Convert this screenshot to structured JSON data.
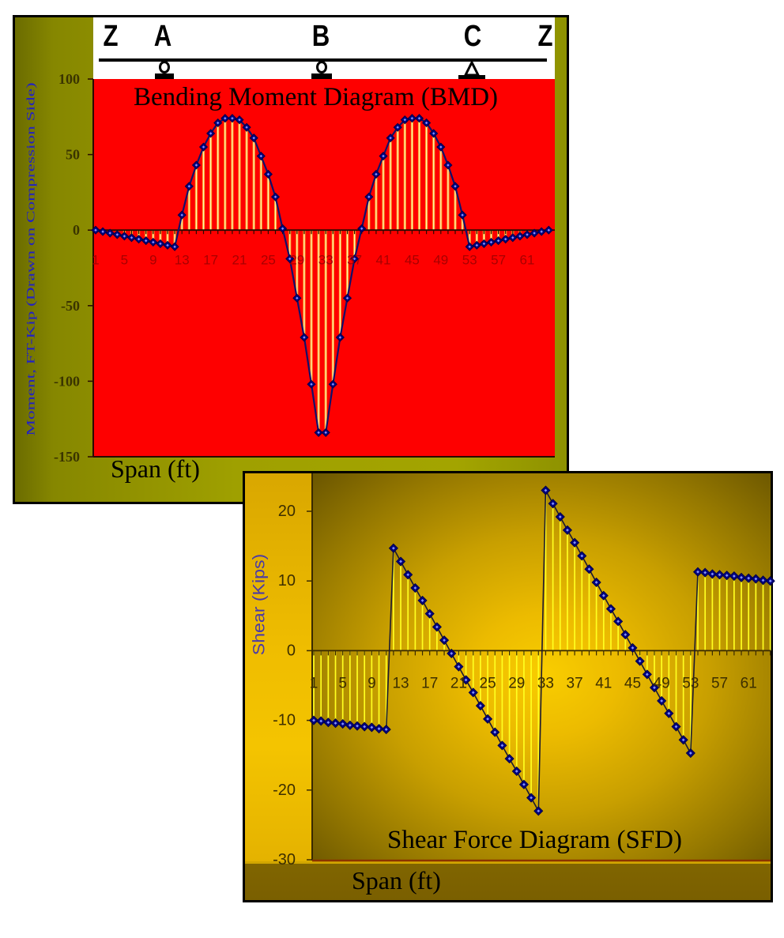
{
  "beam": {
    "labels": [
      "Z",
      "A",
      "B",
      "C",
      "Z"
    ],
    "supports": [
      {
        "at": "A",
        "type": "roller"
      },
      {
        "at": "B",
        "type": "roller"
      },
      {
        "at": "C",
        "type": "pin"
      }
    ]
  },
  "chart_data": [
    {
      "id": "bmd",
      "type": "line",
      "style": "stem-with-markers",
      "title": "Bending Moment Diagram (BMD)",
      "xlabel": "Span (ft)",
      "ylabel": "Moment, FT-Kip (Drawn on Compression Side)",
      "ylim": [
        -150,
        100
      ],
      "yticks": [
        100,
        50,
        0,
        -50,
        -100,
        -150
      ],
      "xtick_labels": [
        "1",
        "5",
        "9",
        "13",
        "17",
        "21",
        "25",
        "29",
        "33",
        "37",
        "41",
        "45",
        "49",
        "53",
        "57",
        "61"
      ],
      "x": [
        1,
        2,
        3,
        4,
        5,
        6,
        7,
        8,
        9,
        10,
        11,
        12,
        13,
        14,
        15,
        16,
        17,
        18,
        19,
        20,
        21,
        22,
        23,
        24,
        25,
        26,
        27,
        28,
        29,
        30,
        31,
        32,
        33,
        34,
        35,
        36,
        37,
        38,
        39,
        40,
        41,
        42,
        43,
        44,
        45,
        46,
        47,
        48,
        49,
        50,
        51,
        52,
        53,
        54,
        55,
        56,
        57,
        58,
        59,
        60,
        61,
        62,
        63,
        64
      ],
      "values": [
        0,
        -1,
        -2,
        -3,
        -4,
        -5,
        -6,
        -7,
        -8,
        -9,
        -10,
        -11,
        10,
        29,
        43,
        55,
        64,
        71,
        74,
        74,
        73,
        68,
        61,
        49,
        37,
        22,
        1,
        -19,
        -45,
        -71,
        -102,
        -134,
        -134,
        -102,
        -71,
        -45,
        -19,
        1,
        22,
        37,
        49,
        61,
        68,
        73,
        74,
        74,
        71,
        64,
        55,
        43,
        29,
        10,
        -11,
        -10,
        -9,
        -8,
        -7,
        -6,
        -5,
        -4,
        -3,
        -2,
        -1,
        0
      ],
      "grid": false,
      "legend": null,
      "colors": {
        "plot_bg": "#fe0000",
        "marker": "#00007a",
        "line": "#10106a",
        "stem": "#fff0b0",
        "stem_edge": "#ff9a20",
        "axis": "#2a0a00"
      }
    },
    {
      "id": "sfd",
      "type": "line",
      "style": "stem-with-markers",
      "title": "Shear Force Diagram (SFD)",
      "xlabel": "Span (ft)",
      "ylabel": "Shear (Kips)",
      "ylim": [
        -30,
        25
      ],
      "yticks": [
        20,
        10,
        0,
        -10,
        -20,
        -30
      ],
      "xtick_labels": [
        "1",
        "5",
        "9",
        "13",
        "17",
        "21",
        "25",
        "29",
        "33",
        "37",
        "41",
        "45",
        "49",
        "53",
        "57",
        "61"
      ],
      "x": [
        1,
        2,
        3,
        4,
        5,
        6,
        7,
        8,
        9,
        10,
        11,
        12,
        13,
        14,
        15,
        16,
        17,
        18,
        19,
        20,
        21,
        22,
        23,
        24,
        25,
        26,
        27,
        28,
        29,
        30,
        31,
        32,
        33,
        34,
        35,
        36,
        37,
        38,
        39,
        40,
        41,
        42,
        43,
        44,
        45,
        46,
        47,
        48,
        49,
        50,
        51,
        52,
        53,
        54,
        55,
        56,
        57,
        58,
        59,
        60,
        61,
        62,
        63,
        64
      ],
      "values": [
        -10.0,
        -10.1,
        -10.3,
        -10.4,
        -10.5,
        -10.7,
        -10.8,
        -10.9,
        -11.0,
        -11.2,
        -11.3,
        14.7,
        12.8,
        10.9,
        9.0,
        7.2,
        5.3,
        3.4,
        1.5,
        -0.4,
        -2.3,
        -4.2,
        -6.0,
        -7.9,
        -9.8,
        -11.7,
        -13.6,
        -15.5,
        -17.3,
        -19.2,
        -21.1,
        -23.0,
        23.0,
        21.1,
        19.2,
        17.3,
        15.5,
        13.6,
        11.7,
        9.8,
        7.9,
        6.0,
        4.2,
        2.3,
        0.4,
        -1.5,
        -3.4,
        -5.3,
        -7.2,
        -9.0,
        -10.9,
        -12.8,
        -14.7,
        11.3,
        11.2,
        11.0,
        10.9,
        10.8,
        10.7,
        10.5,
        10.4,
        10.3,
        10.1,
        10.0
      ],
      "grid": false,
      "legend": null,
      "colors": {
        "plot_bg": "#e9b800",
        "marker": "#00007a",
        "line": "#1c1a30",
        "stem": "#ffff20",
        "stem_edge": null,
        "axis": "#3a2a00",
        "baseline": "#8b3300"
      }
    }
  ]
}
